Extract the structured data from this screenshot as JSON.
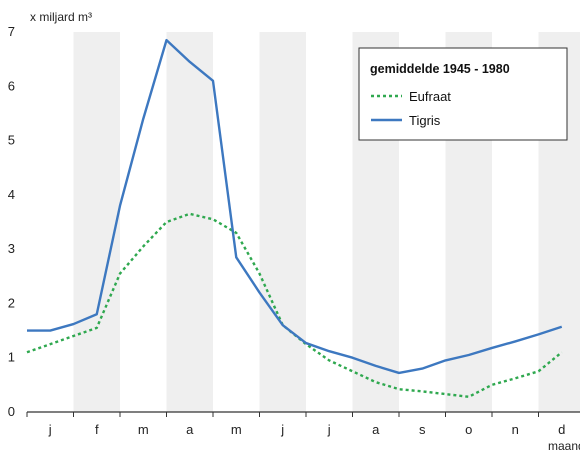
{
  "chart_data": {
    "type": "line",
    "ylabel": "x miljard m³",
    "xlabel": "maand",
    "ylim": [
      0,
      7
    ],
    "yticks": [
      0,
      1,
      2,
      3,
      4,
      5,
      6,
      7
    ],
    "categories": [
      "j",
      "f",
      "m",
      "a",
      "m",
      "j",
      "j",
      "a",
      "s",
      "o",
      "n",
      "d"
    ],
    "grid": "alternating shaded month bands",
    "legend": {
      "title": "gemiddelde 1945 - 1980",
      "placement": "top-right"
    },
    "series": [
      {
        "name": "Eufraat",
        "style": "dashed",
        "color": "#2fa84f",
        "x": [
          0,
          0.5,
          1.0,
          1.5,
          2.0,
          2.5,
          3.0,
          3.5,
          4.0,
          4.5,
          5.0,
          5.5,
          6.0,
          6.5,
          7.0,
          7.5,
          8.0,
          8.5,
          9.0,
          9.5,
          10.0,
          10.5,
          11.0,
          11.5
        ],
        "values": [
          1.1,
          1.25,
          1.4,
          1.55,
          2.55,
          3.05,
          3.5,
          3.65,
          3.55,
          3.3,
          2.55,
          1.6,
          1.25,
          0.95,
          0.75,
          0.55,
          0.42,
          0.38,
          0.33,
          0.28,
          0.5,
          0.62,
          0.75,
          1.1
        ]
      },
      {
        "name": "Tigris",
        "style": "solid",
        "color": "#3d78c0",
        "x": [
          0,
          0.5,
          1.0,
          1.5,
          2.0,
          2.5,
          3.0,
          3.5,
          4.0,
          4.5,
          5.0,
          5.5,
          6.0,
          6.5,
          7.0,
          7.5,
          8.0,
          8.5,
          9.0,
          9.5,
          10.0,
          10.5,
          11.0,
          11.5
        ],
        "values": [
          1.5,
          1.5,
          1.62,
          1.8,
          3.8,
          5.4,
          6.85,
          6.45,
          6.1,
          2.85,
          2.2,
          1.6,
          1.27,
          1.12,
          1.0,
          0.85,
          0.72,
          0.8,
          0.95,
          1.05,
          1.18,
          1.3,
          1.43,
          1.57
        ]
      }
    ]
  }
}
